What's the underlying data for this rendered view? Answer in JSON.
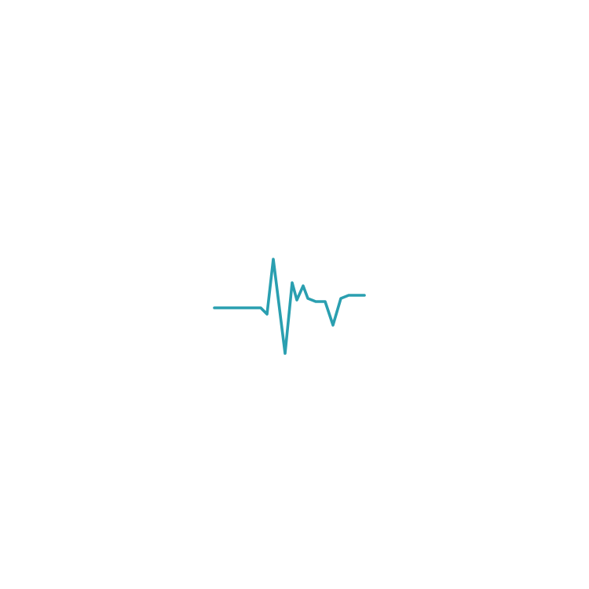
{
  "icon": {
    "name": "heartbeat-pulse-icon",
    "color": "#2a9fb0",
    "background": "#ffffff"
  }
}
